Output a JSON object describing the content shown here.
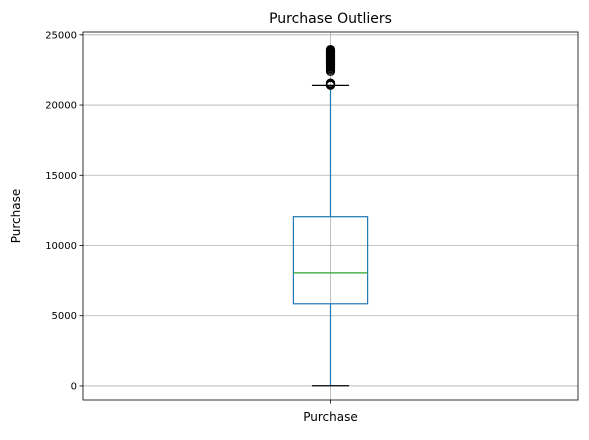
{
  "chart_data": {
    "type": "box",
    "title": "Purchase Outliers",
    "xlabel": "",
    "ylabel": "Purchase",
    "categories": [
      "Purchase"
    ],
    "ylim": [
      -1000,
      25200
    ],
    "yticks": [
      0,
      5000,
      10000,
      15000,
      20000,
      25000
    ],
    "ytick_labels": [
      "0",
      "5000",
      "10000",
      "15000",
      "20000",
      "25000"
    ],
    "grid": true,
    "boxes": [
      {
        "name": "Purchase",
        "whisker_low": 12,
        "q1": 5850,
        "median": 8050,
        "q3": 12050,
        "whisker_high": 21400,
        "outliers": [
          21410,
          21430,
          21450,
          21480,
          21500,
          21520,
          21540,
          21560,
          22400,
          22500,
          22600,
          22700,
          22750,
          22800,
          22850,
          22900,
          22950,
          23000,
          23050,
          23100,
          23150,
          23200,
          23250,
          23300,
          23350,
          23400,
          23450,
          23500,
          23550,
          23600,
          23650,
          23700,
          23750,
          23800,
          23850,
          23900,
          23950
        ]
      }
    ],
    "colors": {
      "box": "#1f77b4",
      "median": "#2ca02c",
      "whisker_cap": "#000000",
      "outlier": "#000000",
      "grid": "#b0b0b0",
      "axes": "#000000"
    }
  }
}
